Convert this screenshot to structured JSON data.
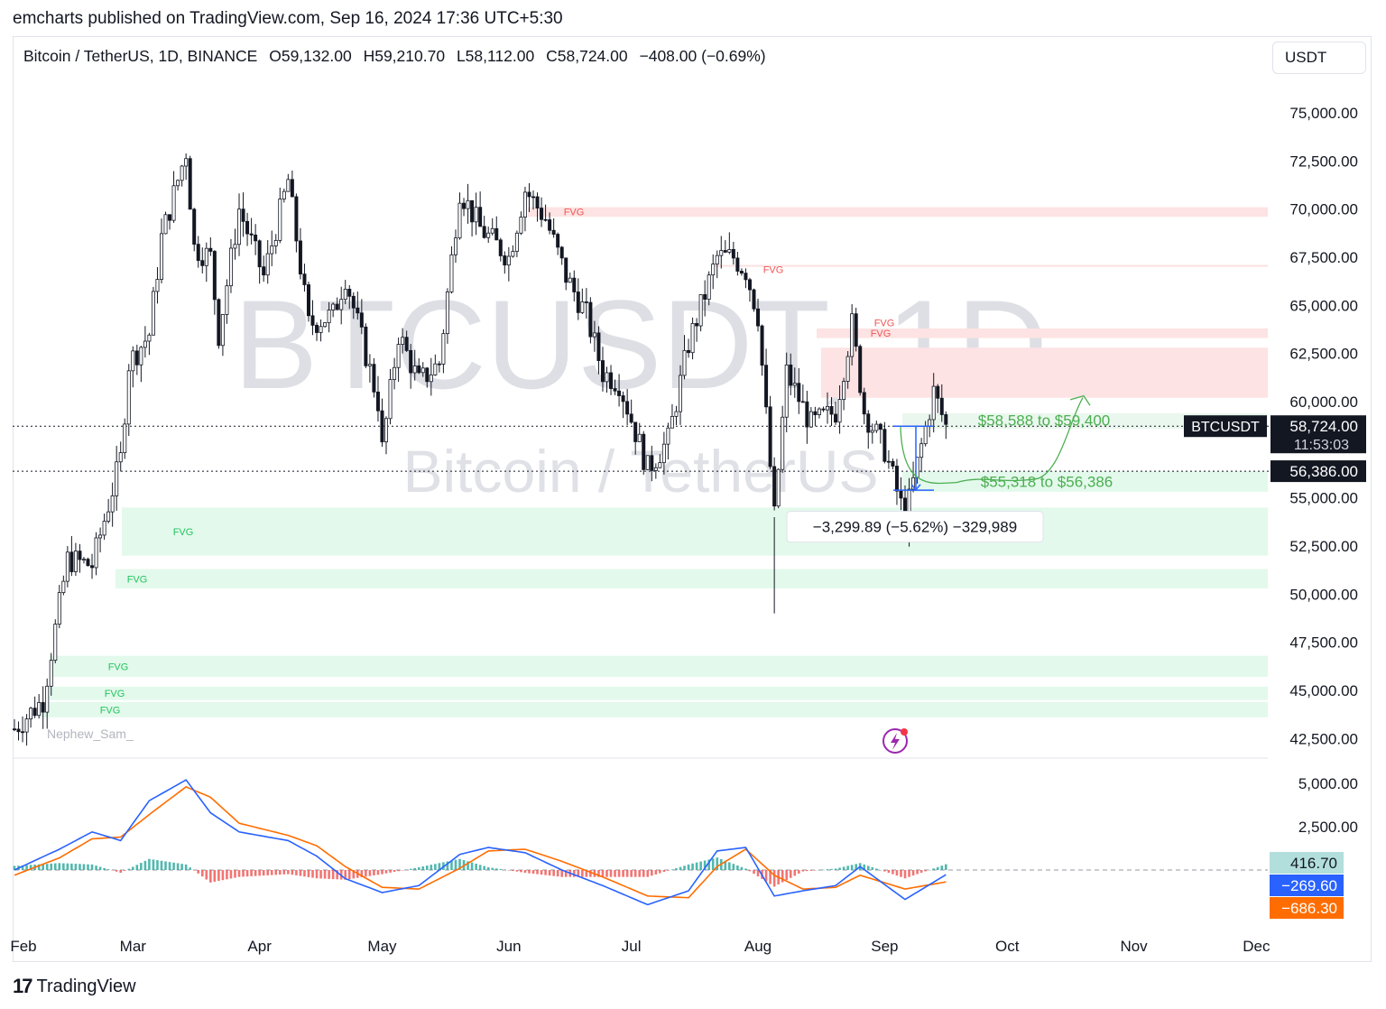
{
  "header": {
    "publisher": "emcharts published on TradingView.com, Sep 16, 2024 17:36 UTC+5:30",
    "symbol": "Bitcoin / TetherUS, 1D, BINANCE",
    "open": "O59,132.00",
    "high": "H59,210.70",
    "low": "L58,112.00",
    "close": "C58,724.00",
    "change": "−408.00 (−0.69%)",
    "currency": "USDT"
  },
  "watermark": {
    "line1": "BTCUSDT, 1D",
    "line2": "Bitcoin / TetherUS"
  },
  "author_tag": "Nephew_Sam_",
  "footer": {
    "brand": "TradingView"
  },
  "colors": {
    "up": "#131722",
    "down": "#131722",
    "bear_fvg": "#fde3e3",
    "bull_fvg": "#e3f9ec",
    "bear_fvg_text": "#f05454",
    "bull_fvg_text": "#22c55e",
    "target_text": "#4caf50",
    "macd": "#2962ff",
    "signal": "#ff6d00",
    "hist_pos": "#26a69a",
    "hist_neg": "#ef5350"
  },
  "chart_data": [
    {
      "type": "candlestick",
      "title": "Bitcoin / TetherUS, 1D, BINANCE",
      "x_ticks": [
        "Feb",
        "Mar",
        "Apr",
        "May",
        "Jun",
        "Jul",
        "Aug",
        "Sep",
        "Oct",
        "Nov",
        "Dec"
      ],
      "y_ticks": [
        "75,000.00",
        "72,500.00",
        "70,000.00",
        "67,500.00",
        "65,000.00",
        "62,500.00",
        "60,000.00",
        "55,000.00",
        "52,500.00",
        "50,000.00",
        "47,500.00",
        "45,000.00",
        "42,500.00"
      ],
      "ylim": [
        41500,
        77500
      ],
      "price_path": [
        [
          "2024-02-01",
          43000
        ],
        [
          "2024-02-08",
          44500
        ],
        [
          "2024-02-10",
          47000
        ],
        [
          "2024-02-14",
          51800
        ],
        [
          "2024-02-20",
          51500
        ],
        [
          "2024-02-27",
          57000
        ],
        [
          "2024-02-29",
          62000
        ],
        [
          "2024-03-05",
          63500
        ],
        [
          "2024-03-08",
          68500
        ],
        [
          "2024-03-14",
          73000
        ],
        [
          "2024-03-16",
          68000
        ],
        [
          "2024-03-20",
          67500
        ],
        [
          "2024-03-22",
          63500
        ],
        [
          "2024-03-27",
          70000
        ],
        [
          "2024-04-02",
          66500
        ],
        [
          "2024-04-08",
          71500
        ],
        [
          "2024-04-13",
          64000
        ],
        [
          "2024-04-19",
          64500
        ],
        [
          "2024-04-22",
          66500
        ],
        [
          "2024-04-30",
          60000
        ],
        [
          "2024-05-01",
          57500
        ],
        [
          "2024-05-05",
          63500
        ],
        [
          "2024-05-10",
          61000
        ],
        [
          "2024-05-15",
          62000
        ],
        [
          "2024-05-20",
          71000
        ],
        [
          "2024-05-25",
          69000
        ],
        [
          "2024-06-01",
          67500
        ],
        [
          "2024-06-05",
          71000
        ],
        [
          "2024-06-10",
          69500
        ],
        [
          "2024-06-15",
          66500
        ],
        [
          "2024-06-20",
          64500
        ],
        [
          "2024-06-24",
          61500
        ],
        [
          "2024-06-28",
          61000
        ],
        [
          "2024-07-05",
          56500
        ],
        [
          "2024-07-10",
          58000
        ],
        [
          "2024-07-15",
          63000
        ],
        [
          "2024-07-22",
          67500
        ],
        [
          "2024-07-26",
          67500
        ],
        [
          "2024-07-29",
          66800
        ],
        [
          "2024-08-01",
          64500
        ],
        [
          "2024-08-05",
          54000
        ],
        [
          "2024-08-08",
          61500
        ],
        [
          "2024-08-14",
          58800
        ],
        [
          "2024-08-20",
          59500
        ],
        [
          "2024-08-24",
          64000
        ],
        [
          "2024-08-27",
          59500
        ],
        [
          "2024-09-01",
          57500
        ],
        [
          "2024-09-06",
          53900
        ],
        [
          "2024-09-10",
          57700
        ],
        [
          "2024-09-13",
          60500
        ],
        [
          "2024-09-16",
          58724
        ]
      ],
      "last_price": "58,724.00",
      "countdown": "11:53:03",
      "price_line": "56,386.00",
      "fvg_bearish": [
        {
          "label": "FVG",
          "from": 69600,
          "to": 70100
        },
        {
          "label": "FVG",
          "from": 67000,
          "to": 67100
        },
        {
          "label": "FVG",
          "from": 63300,
          "to": 63800
        },
        {
          "label": "FVG",
          "from": 60200,
          "to": 62800
        }
      ],
      "fvg_bullish": [
        {
          "label": "FVG",
          "from": 52000,
          "to": 54500
        },
        {
          "label": "FVG",
          "from": 50300,
          "to": 51300
        },
        {
          "label": "FVG",
          "from": 45700,
          "to": 46800
        },
        {
          "label": "FVG",
          "from": 44500,
          "to": 45200
        },
        {
          "label": "FVG",
          "from": 43600,
          "to": 44400
        }
      ],
      "annotations": [
        {
          "text": "$58,588 to $59,400",
          "price": 59000
        },
        {
          "text": "$55,318 to $56,386",
          "price": 55800
        },
        {
          "text": "−3,299.89 (−5.62%) −329,989",
          "price": 53300
        }
      ]
    },
    {
      "type": "line",
      "title": "MACD",
      "y_ticks": [
        "5,000.00",
        "2,500.00"
      ],
      "series": [
        {
          "name": "macd",
          "value": "−269.60"
        },
        {
          "name": "signal",
          "value": "−686.30"
        }
      ],
      "histogram_value": "416.70",
      "macd_path": [
        [
          "2024-02-01",
          0
        ],
        [
          "2024-02-12",
          1200
        ],
        [
          "2024-02-20",
          2200
        ],
        [
          "2024-02-27",
          1700
        ],
        [
          "2024-03-05",
          4000
        ],
        [
          "2024-03-14",
          5200
        ],
        [
          "2024-03-20",
          3300
        ],
        [
          "2024-03-27",
          2200
        ],
        [
          "2024-04-08",
          1700
        ],
        [
          "2024-04-15",
          800
        ],
        [
          "2024-04-22",
          -500
        ],
        [
          "2024-05-01",
          -1300
        ],
        [
          "2024-05-10",
          -900
        ],
        [
          "2024-05-20",
          900
        ],
        [
          "2024-05-27",
          1300
        ],
        [
          "2024-06-05",
          1000
        ],
        [
          "2024-06-14",
          0
        ],
        [
          "2024-06-24",
          -900
        ],
        [
          "2024-07-05",
          -2000
        ],
        [
          "2024-07-15",
          -1200
        ],
        [
          "2024-07-22",
          1100
        ],
        [
          "2024-07-29",
          1300
        ],
        [
          "2024-08-05",
          -1500
        ],
        [
          "2024-08-12",
          -1200
        ],
        [
          "2024-08-20",
          -900
        ],
        [
          "2024-08-26",
          200
        ],
        [
          "2024-09-06",
          -1700
        ],
        [
          "2024-09-16",
          -270
        ]
      ],
      "signal_path": [
        [
          "2024-02-01",
          -300
        ],
        [
          "2024-02-12",
          700
        ],
        [
          "2024-02-20",
          1800
        ],
        [
          "2024-02-27",
          1900
        ],
        [
          "2024-03-05",
          3200
        ],
        [
          "2024-03-14",
          4800
        ],
        [
          "2024-03-20",
          4200
        ],
        [
          "2024-03-27",
          2700
        ],
        [
          "2024-04-08",
          2000
        ],
        [
          "2024-04-15",
          1400
        ],
        [
          "2024-04-22",
          200
        ],
        [
          "2024-05-01",
          -1000
        ],
        [
          "2024-05-10",
          -1100
        ],
        [
          "2024-05-20",
          100
        ],
        [
          "2024-05-27",
          1100
        ],
        [
          "2024-06-05",
          1200
        ],
        [
          "2024-06-14",
          500
        ],
        [
          "2024-06-24",
          -400
        ],
        [
          "2024-07-05",
          -1500
        ],
        [
          "2024-07-15",
          -1600
        ],
        [
          "2024-07-22",
          200
        ],
        [
          "2024-07-29",
          1200
        ],
        [
          "2024-08-05",
          -300
        ],
        [
          "2024-08-12",
          -1100
        ],
        [
          "2024-08-20",
          -1000
        ],
        [
          "2024-08-26",
          -300
        ],
        [
          "2024-09-06",
          -1100
        ],
        [
          "2024-09-16",
          -686
        ]
      ]
    }
  ]
}
